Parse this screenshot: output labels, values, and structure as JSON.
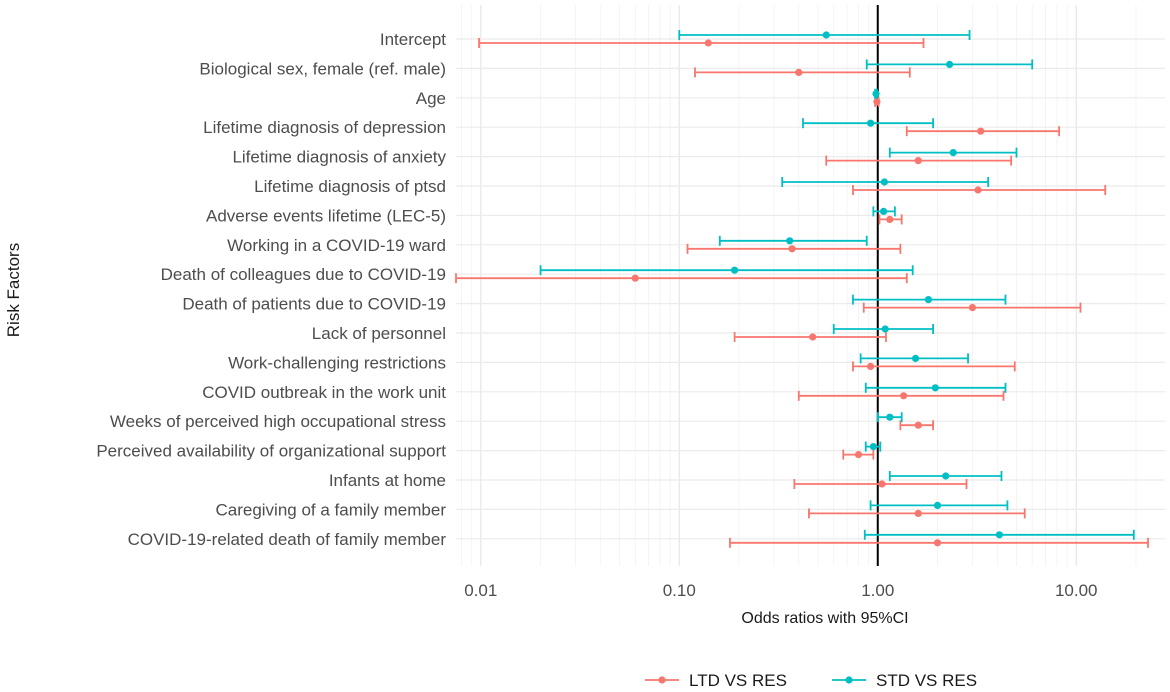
{
  "chart_data": {
    "type": "forest",
    "title": "",
    "xlabel": "Odds ratios with 95%CI",
    "ylabel": "Risk Factors",
    "x_scale": "log10",
    "xlim": [
      0.0075,
      28
    ],
    "x_ticks": [
      0.01,
      0.1,
      1,
      10
    ],
    "x_tick_labels": [
      "0.01",
      "0.10",
      "1.00",
      "10.00"
    ],
    "reference_line": 1,
    "grid": true,
    "legend_position": "bottom",
    "categories": [
      "Intercept",
      "Biological sex, female (ref. male)",
      "Age",
      "Lifetime diagnosis of depression",
      "Lifetime diagnosis of anxiety",
      "Lifetime diagnosis of ptsd",
      "Adverse events lifetime (LEC-5)",
      "Working in a COVID-19 ward",
      "Death of colleagues due to COVID-19",
      "Death of patients due to COVID-19",
      "Lack of personnel",
      "Work-challenging restrictions",
      "COVID outbreak in the work unit",
      "Weeks of perceived high occupational stress",
      "Perceived availability of organizational support",
      "Infants at home",
      "Caregiving of a family member",
      "COVID-19-related death of family member"
    ],
    "series": [
      {
        "name": "LTD VS RES",
        "color": "#f8766d",
        "estimates": [
          0.14,
          0.4,
          0.99,
          3.3,
          1.6,
          3.2,
          1.15,
          0.37,
          0.06,
          3.0,
          0.47,
          0.92,
          1.35,
          1.6,
          0.8,
          1.05,
          1.6,
          2.0
        ],
        "lower": [
          0.0098,
          0.12,
          0.97,
          1.4,
          0.55,
          0.75,
          1.02,
          0.11,
          0.0075,
          0.85,
          0.19,
          0.75,
          0.4,
          1.3,
          0.67,
          0.38,
          0.45,
          0.18
        ],
        "upper": [
          1.7,
          1.45,
          1.01,
          8.2,
          4.7,
          14.0,
          1.32,
          1.3,
          1.4,
          10.5,
          1.1,
          4.9,
          4.3,
          1.9,
          0.95,
          2.8,
          5.5,
          23.0
        ]
      },
      {
        "name": "STD VS RES",
        "color": "#00bfc4",
        "estimates": [
          0.55,
          2.3,
          0.98,
          0.92,
          2.4,
          1.08,
          1.07,
          0.36,
          0.19,
          1.8,
          1.09,
          1.55,
          1.95,
          1.15,
          0.95,
          2.2,
          2.0,
          4.1
        ],
        "lower": [
          0.1,
          0.88,
          0.97,
          0.42,
          1.15,
          0.33,
          0.95,
          0.16,
          0.02,
          0.75,
          0.6,
          0.82,
          0.87,
          1.0,
          0.87,
          1.15,
          0.92,
          0.86
        ],
        "upper": [
          2.9,
          6.0,
          0.99,
          1.9,
          5.0,
          3.6,
          1.22,
          0.88,
          1.5,
          4.4,
          1.9,
          2.85,
          4.4,
          1.32,
          1.03,
          4.2,
          4.5,
          19.5
        ]
      }
    ]
  }
}
